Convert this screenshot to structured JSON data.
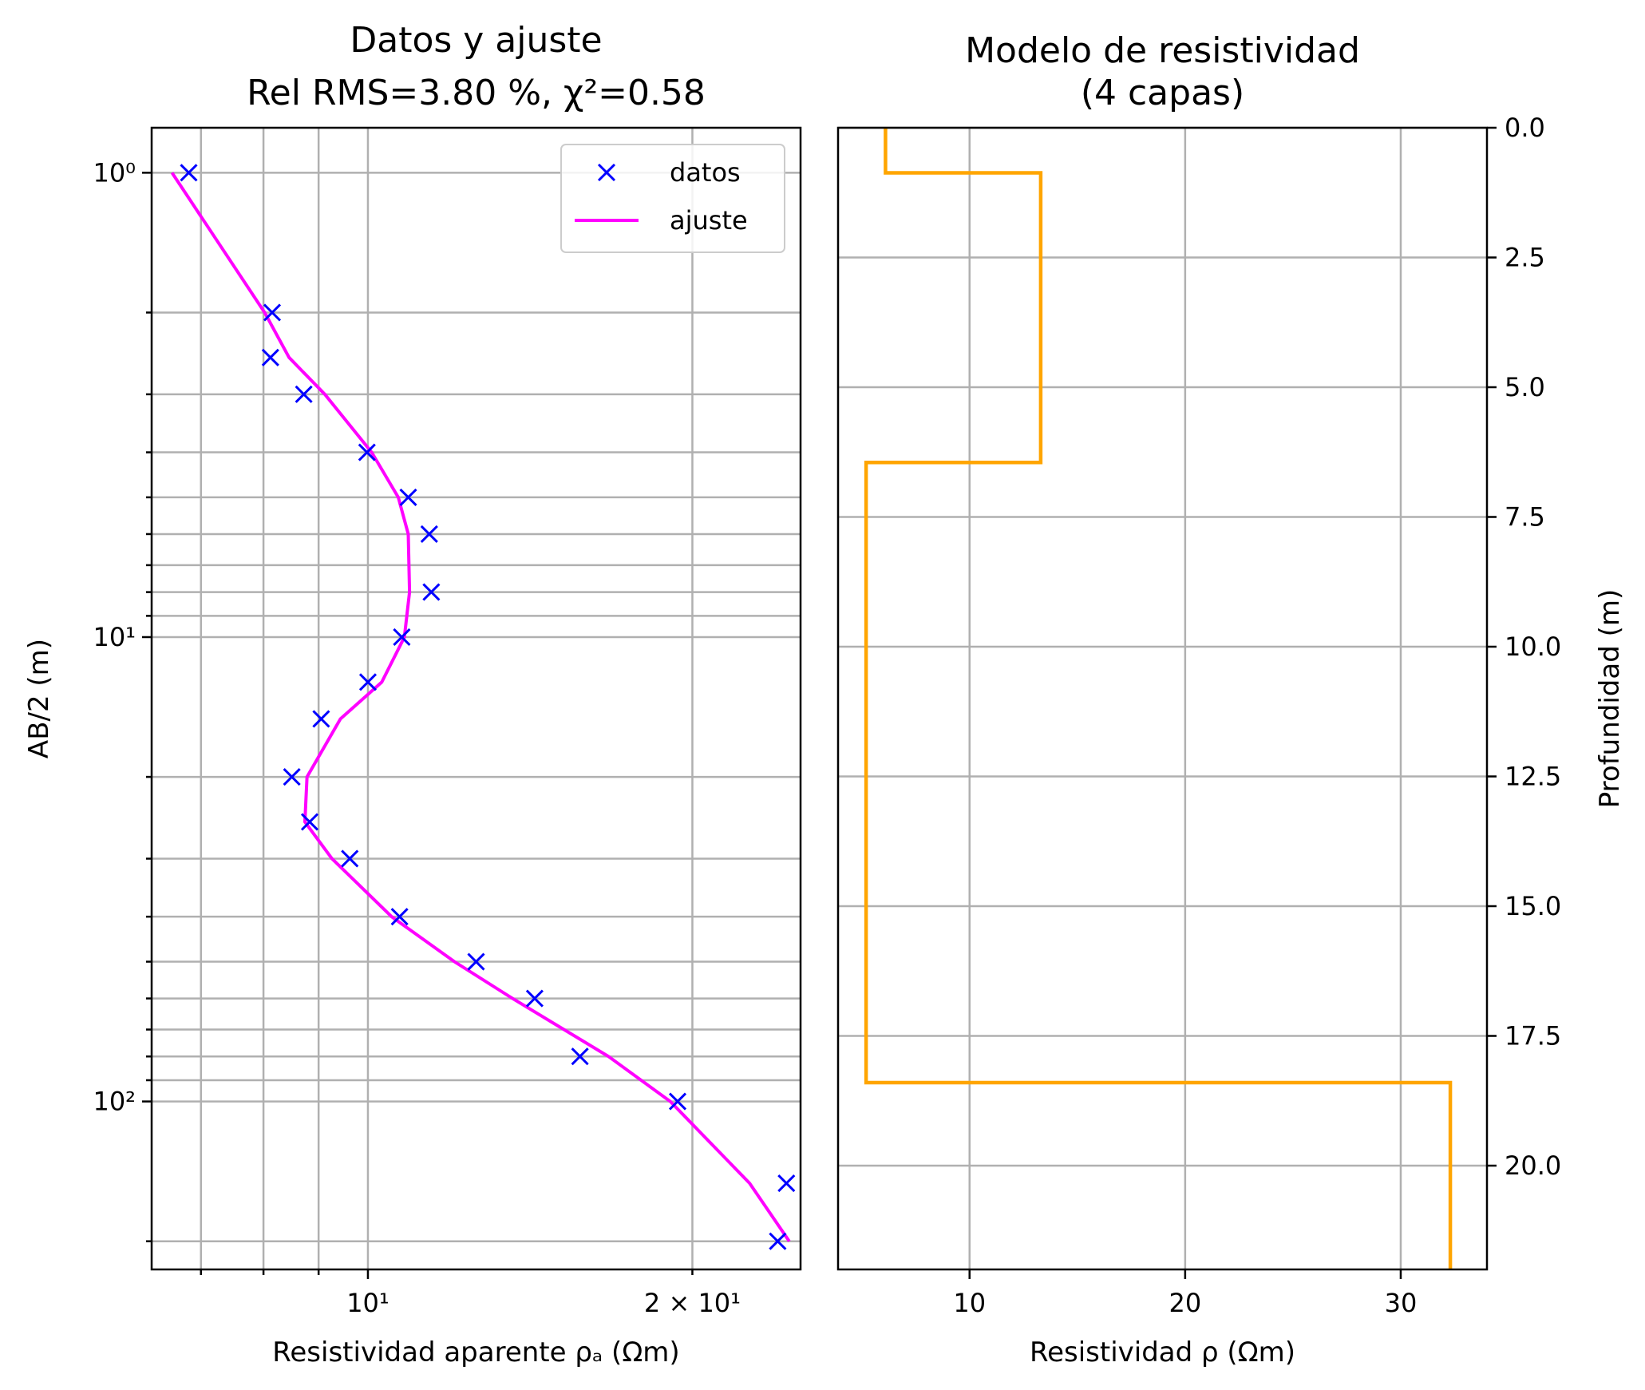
{
  "chart_data": [
    {
      "type": "line",
      "title": "Datos y ajuste",
      "subtitle": "Rel RMS=3.80 %, χ²=0.58",
      "xlabel": "Resistividad aparente ρₐ (Ωm)",
      "ylabel": "AB/2 (m)",
      "xscale": "log",
      "yscale": "log",
      "y_inverted": true,
      "xlim": [
        6.3,
        25.2
      ],
      "ylim": [
        0.8,
        230
      ],
      "x_ticks": [
        {
          "v": 10,
          "label": "10¹"
        },
        {
          "v": 20,
          "label": "2 × 10¹"
        }
      ],
      "y_ticks": [
        {
          "v": 1,
          "label": "10⁰"
        },
        {
          "v": 10,
          "label": "10¹"
        },
        {
          "v": 100,
          "label": "10²"
        }
      ],
      "grid": true,
      "legend": {
        "position": "top-right",
        "entries": [
          "datos",
          "ajuste"
        ]
      },
      "series": [
        {
          "name": "datos",
          "marker": "x",
          "color": "#0000ff",
          "points": [
            [
              6.82,
              1.0
            ],
            [
              8.15,
              2.0
            ],
            [
              8.12,
              2.5
            ],
            [
              8.72,
              3.0
            ],
            [
              9.98,
              4.0
            ],
            [
              10.9,
              5.0
            ],
            [
              11.4,
              6.0
            ],
            [
              11.45,
              8.0
            ],
            [
              10.75,
              10.0
            ],
            [
              10.0,
              12.5
            ],
            [
              9.05,
              15.0
            ],
            [
              8.5,
              20.0
            ],
            [
              8.83,
              25.0
            ],
            [
              9.62,
              30.0
            ],
            [
              10.7,
              40.0
            ],
            [
              12.6,
              50.0
            ],
            [
              14.28,
              60.0
            ],
            [
              15.73,
              80.0
            ],
            [
              19.38,
              100.0
            ],
            [
              24.45,
              150.0
            ],
            [
              24.0,
              200.0
            ]
          ]
        },
        {
          "name": "ajuste",
          "color": "#ff00ff",
          "points": [
            [
              6.58,
              1.0
            ],
            [
              8.02,
              2.0
            ],
            [
              8.45,
              2.5
            ],
            [
              9.12,
              3.0
            ],
            [
              10.08,
              4.0
            ],
            [
              10.67,
              5.0
            ],
            [
              10.9,
              6.0
            ],
            [
              10.93,
              8.0
            ],
            [
              10.81,
              10.0
            ],
            [
              10.3,
              12.5
            ],
            [
              9.43,
              15.0
            ],
            [
              8.78,
              20.0
            ],
            [
              8.74,
              25.0
            ],
            [
              9.26,
              30.0
            ],
            [
              10.52,
              40.0
            ],
            [
              12.03,
              50.0
            ],
            [
              13.62,
              60.0
            ],
            [
              16.72,
              80.0
            ],
            [
              19.08,
              100.0
            ],
            [
              22.6,
              150.0
            ],
            [
              24.6,
              200.0
            ]
          ]
        }
      ]
    },
    {
      "type": "line",
      "title": "Modelo de resistividad",
      "subtitle": "(4 capas)",
      "xlabel": "Resistividad ρ (Ωm)",
      "ylabel": "Profundidad (m)",
      "ylabel_side": "right",
      "y_inverted": true,
      "xlim": [
        3.9,
        34.0
      ],
      "ylim": [
        0.0,
        22.0
      ],
      "x_ticks": [
        10,
        20,
        30
      ],
      "y_ticks": [
        "0.0",
        "2.5",
        "5.0",
        "7.5",
        "10.0",
        "12.5",
        "15.0",
        "17.5",
        "20.0"
      ],
      "grid": true,
      "series": [
        {
          "color": "#ffa500",
          "layers": [
            {
              "rho": 6.1,
              "top": 0.0,
              "bottom": 0.87
            },
            {
              "rho": 13.3,
              "top": 0.87,
              "bottom": 6.45
            },
            {
              "rho": 5.2,
              "top": 6.45,
              "bottom": 18.4
            },
            {
              "rho": 32.3,
              "top": 18.4,
              "bottom": 22.0
            }
          ]
        }
      ]
    }
  ]
}
